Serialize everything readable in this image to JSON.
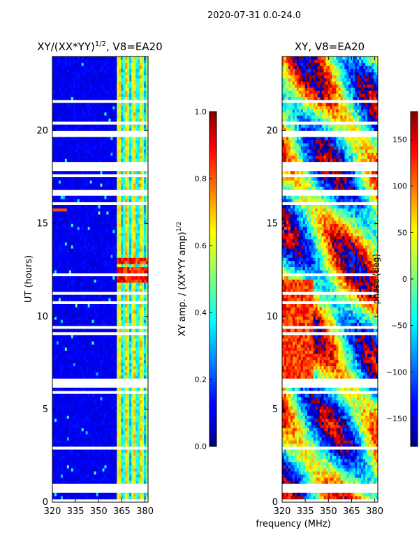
{
  "figure": {
    "suptitle": "2020-07-31 0.0-24.0",
    "xlabel": "frequency (MHz)",
    "colormap": "jet"
  },
  "chart_data": [
    {
      "type": "heatmap",
      "title": "XY/(XX*YY)^1/2, V8=EA20",
      "title_main": "XY/(XX*YY)",
      "title_sup": "1/2",
      "title_tail": ", V8=EA20",
      "xlabel": "",
      "ylabel": "UT (hours)",
      "xlim": [
        320,
        382
      ],
      "ylim": [
        0,
        24
      ],
      "xticks": [
        320,
        335,
        350,
        365,
        380
      ],
      "yticks": [
        0,
        5,
        10,
        15,
        20
      ],
      "colorbar": {
        "label": "XY amp. / (XX*YY amp)^1/2",
        "label_main": "XY amp. / (XX*YY amp)",
        "label_sup": "1/2",
        "range": [
          0.0,
          1.0
        ],
        "ticks": [
          "0.0",
          "0.2",
          "0.4",
          "0.6",
          "0.8",
          "1.0"
        ]
      },
      "flagged_ut_bands": [
        [
          6.1,
          6.6
        ],
        [
          17.9,
          18.3
        ]
      ],
      "band_edge_mhz": 362,
      "strong_ut_rows": [
        11.9,
        12.0,
        12.5,
        12.9,
        13.0
      ]
    },
    {
      "type": "heatmap",
      "title": "XY, V8=EA20",
      "xlabel": "frequency (MHz)",
      "ylabel": "",
      "xlim": [
        320,
        382
      ],
      "ylim": [
        0,
        24
      ],
      "xticks": [
        320,
        335,
        350,
        365,
        380
      ],
      "yticks": [
        0,
        5,
        10,
        15,
        20
      ],
      "colorbar": {
        "label": "phase (deg)",
        "range": [
          -180,
          180
        ],
        "ticks": [
          "150",
          "100",
          "50",
          "0",
          "−50",
          "−100",
          "−150"
        ]
      },
      "flagged_ut_bands": [
        [
          6.1,
          6.6
        ],
        [
          17.9,
          18.3
        ]
      ]
    }
  ]
}
